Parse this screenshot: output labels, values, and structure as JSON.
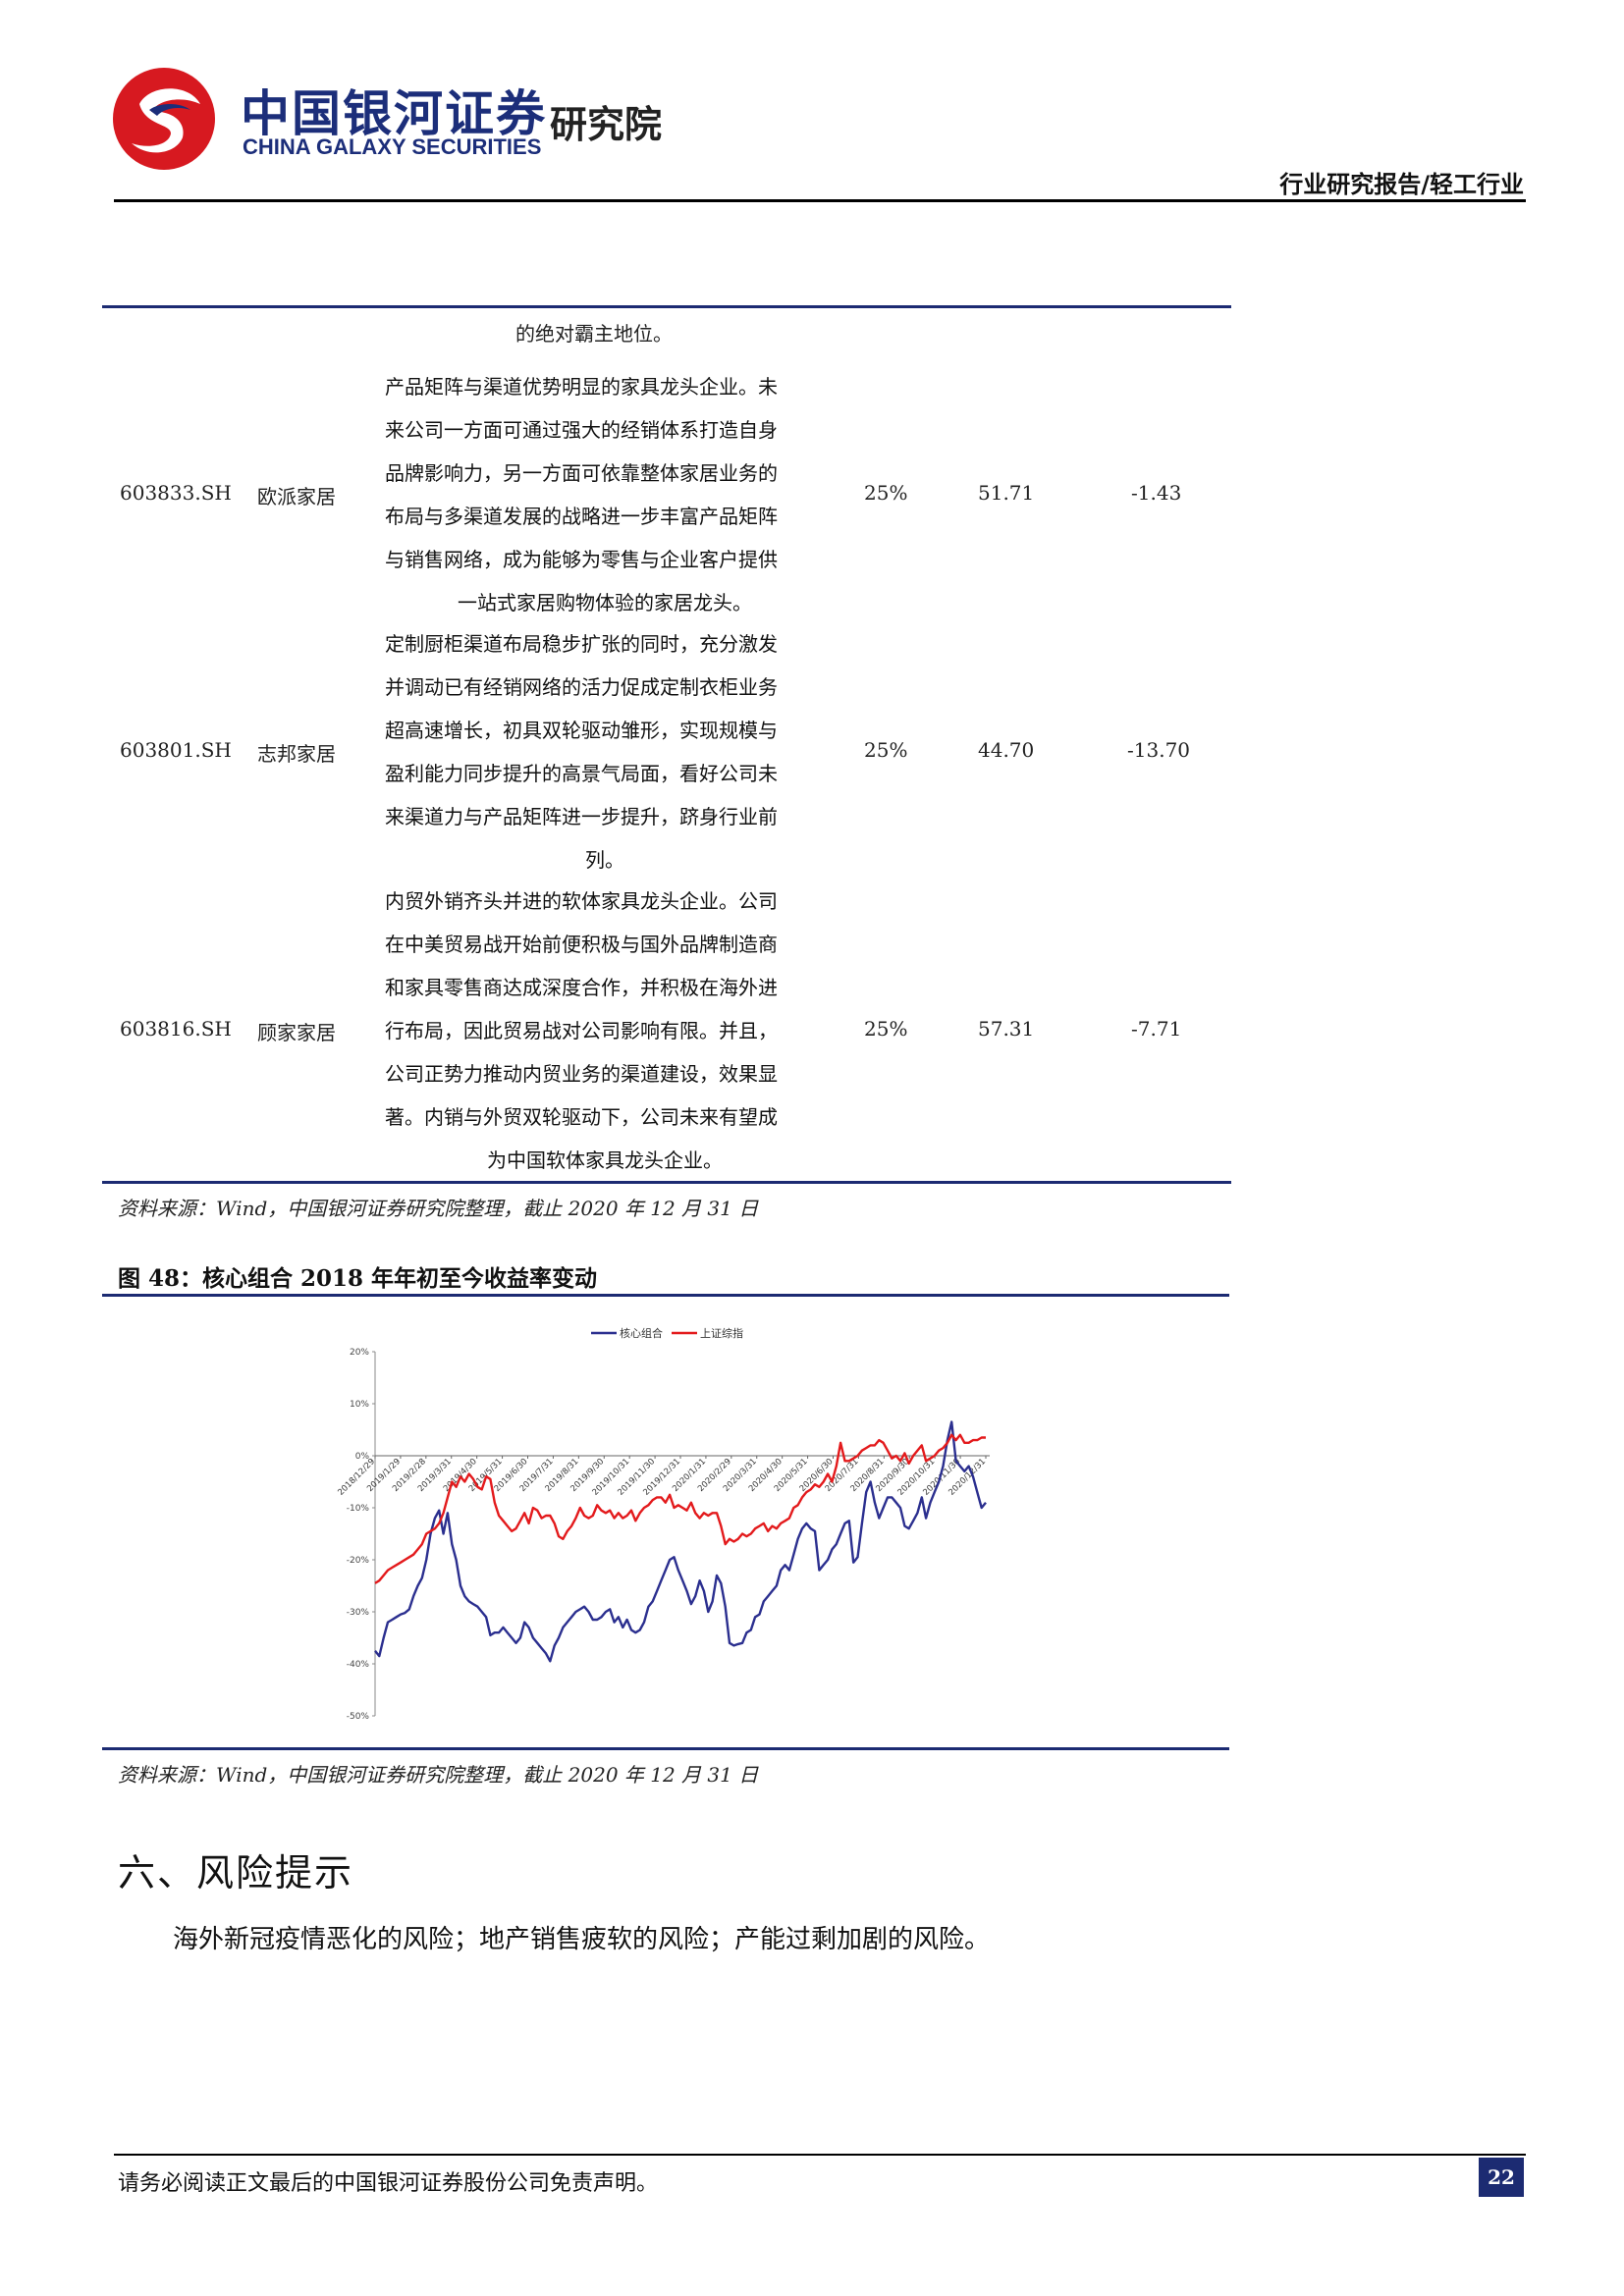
{
  "header": {
    "brand_cn": "中国银河证券",
    "brand_en": "CHINA GALAXY SECURITIES",
    "brand_institute": "研究院",
    "report_type": "行业研究报告/轻工行业"
  },
  "table": {
    "top_fragment": "的绝对霸主地位。",
    "rows": [
      {
        "code": "603833.SH",
        "name": "欧派家居",
        "desc_lines": [
          "产品矩阵与渠道优势明显的家具龙头企业。未",
          "来公司一方面可通过强大的经销体系打造自身",
          "品牌影响力，另一方面可依靠整体家居业务的",
          "布局与多渠道发展的战略进一步丰富产品矩阵",
          "与销售网络，成为能够为零售与企业客户提供",
          "一站式家居购物体验的家居龙头。"
        ],
        "pct": "25%",
        "v1": "51.71",
        "v2": "-1.43"
      },
      {
        "code": "603801.SH",
        "name": "志邦家居",
        "desc_lines": [
          "定制厨柜渠道布局稳步扩张的同时，充分激发",
          "并调动已有经销网络的活力促成定制衣柜业务",
          "超高速增长，初具双轮驱动雏形，实现规模与",
          "盈利能力同步提升的高景气局面，看好公司未",
          "来渠道力与产品矩阵进一步提升，跻身行业前",
          "列。"
        ],
        "pct": "25%",
        "v1": "44.70",
        "v2": "-13.70"
      },
      {
        "code": "603816.SH",
        "name": "顾家家居",
        "desc_lines": [
          "内贸外销齐头并进的软体家具龙头企业。公司",
          "在中美贸易战开始前便积极与国外品牌制造商",
          "和家具零售商达成深度合作，并积极在海外进",
          "行布局，因此贸易战对公司影响有限。并且，",
          "公司正势力推动内贸业务的渠道建设，效果显",
          "著。内销与外贸双轮驱动下，公司未来有望成",
          "为中国软体家具龙头企业。"
        ],
        "pct": "25%",
        "v1": "57.31",
        "v2": "-7.71"
      }
    ],
    "source": "资料来源：Wind，中国银河证券研究院整理，截止 2020 年 12 月 31 日"
  },
  "figure": {
    "title": "图 48：核心组合 2018 年年初至今收益率变动",
    "source": "资料来源：Wind，中国银河证券研究院整理，截止 2020 年 12 月 31 日"
  },
  "chart_data": {
    "type": "line",
    "y_ticks": [
      "20%",
      "10%",
      "0%",
      "-10%",
      "-20%",
      "-30%",
      "-40%",
      "-50%"
    ],
    "ylim": [
      -50,
      20
    ],
    "x_ticks": [
      "2018/12/29",
      "2019/1/29",
      "2019/2/28",
      "2019/3/31",
      "2019/4/30",
      "2019/5/31",
      "2019/6/30",
      "2019/7/31",
      "2019/8/31",
      "2019/9/30",
      "2019/10/31",
      "2019/11/30",
      "2019/12/31",
      "2020/1/31",
      "2020/2/29",
      "2020/3/31",
      "2020/4/30",
      "2020/5/31",
      "2020/6/30",
      "2020/7/31",
      "2020/8/31",
      "2020/9/30",
      "2020/10/31",
      "2020/11/30",
      "2020/12/31"
    ],
    "legend_position": "top-center",
    "series": [
      {
        "name": "核心组合",
        "color": "#2b2f8f",
        "values": [
          -37.5,
          -38.5,
          -35,
          -32,
          -31.5,
          -31,
          -30.5,
          -30.2,
          -29.5,
          -27,
          -25,
          -23.5,
          -20,
          -15,
          -12,
          -10.5,
          -15,
          -11,
          -17,
          -20,
          -25,
          -27,
          -28,
          -28.5,
          -29,
          -30,
          -31,
          -34.5,
          -34,
          -34,
          -33,
          -34,
          -35,
          -36,
          -35,
          -32,
          -33,
          -35,
          -36,
          -37,
          -38,
          -39.5,
          -36.5,
          -35,
          -33,
          -32,
          -31,
          -30,
          -29.5,
          -29,
          -30,
          -31.5,
          -31.5,
          -31,
          -30,
          -29.5,
          -32,
          -31,
          -33,
          -31.5,
          -33.5,
          -34,
          -33.5,
          -32,
          -29,
          -28,
          -26,
          -24,
          -22,
          -20,
          -19.5,
          -22,
          -24,
          -26,
          -28.5,
          -27,
          -24,
          -26,
          -30,
          -28,
          -23,
          -24.5,
          -29,
          -36,
          -36.5,
          -36.2,
          -36,
          -34,
          -33.5,
          -31,
          -30.5,
          -28,
          -27,
          -26,
          -25,
          -22,
          -21,
          -22,
          -19,
          -16,
          -14,
          -13,
          -14,
          -14.5,
          -22,
          -21,
          -20,
          -18,
          -17,
          -15,
          -13,
          -12.5,
          -20.5,
          -19.5,
          -13,
          -7,
          -5,
          -9,
          -12,
          -10,
          -8,
          -8,
          -9,
          -10,
          -13.5,
          -14,
          -12.5,
          -11,
          -8,
          -12,
          -9,
          -7,
          -5,
          -2,
          3,
          6.5,
          -1,
          -2,
          -3,
          -2,
          -4,
          -7,
          -10,
          -9
        ]
      },
      {
        "name": "上证综指",
        "color": "#e31a1c",
        "values": [
          -24.5,
          -24,
          -23,
          -22,
          -21.5,
          -21,
          -20.5,
          -20,
          -19.5,
          -19,
          -18,
          -17,
          -15,
          -14.5,
          -14,
          -13,
          -11,
          -8,
          -5,
          -6,
          -4,
          -5,
          -3.5,
          -4.5,
          -6,
          -6.5,
          -4,
          -4.5,
          -9,
          -11.5,
          -12.5,
          -13.5,
          -14.5,
          -14,
          -12.5,
          -11,
          -13,
          -10,
          -10.5,
          -12,
          -11.5,
          -11.5,
          -13,
          -15.5,
          -16,
          -14.5,
          -13.5,
          -12,
          -10,
          -11.5,
          -12,
          -11.5,
          -9.5,
          -10.5,
          -11,
          -10.5,
          -12,
          -11,
          -12,
          -11.5,
          -10.5,
          -12.5,
          -11,
          -10,
          -9.5,
          -8.5,
          -8,
          -8,
          -9,
          -7.5,
          -10,
          -9.5,
          -10,
          -10.5,
          -9,
          -11,
          -12,
          -11,
          -11.5,
          -11,
          -11,
          -13.5,
          -17,
          -16,
          -16.5,
          -16,
          -15,
          -15.5,
          -15,
          -14,
          -13.5,
          -13,
          -14.5,
          -13.5,
          -14,
          -13,
          -12.5,
          -12,
          -10,
          -9.5,
          -8,
          -7,
          -6.5,
          -5.5,
          -6,
          -5,
          -3.5,
          -5,
          -2,
          2.5,
          -1,
          -1,
          -0.5,
          0,
          1,
          1.5,
          2,
          2,
          3,
          2.5,
          1,
          -0.5,
          0,
          -1,
          0.5,
          -1.5,
          0,
          1,
          2,
          -1,
          -0.5,
          0,
          1,
          1.5,
          2.5,
          4,
          3,
          4,
          2.5,
          2.5,
          3,
          3,
          3.5,
          3.5
        ]
      }
    ]
  },
  "section": {
    "title": "六、风险提示",
    "text": "海外新冠疫情恶化的风险；地产销售疲软的风险；产能过剩加剧的风险。"
  },
  "footer": {
    "text": "请务必阅读正文最后的中国银河证券股份公司免责声明。",
    "page_number": "22"
  }
}
